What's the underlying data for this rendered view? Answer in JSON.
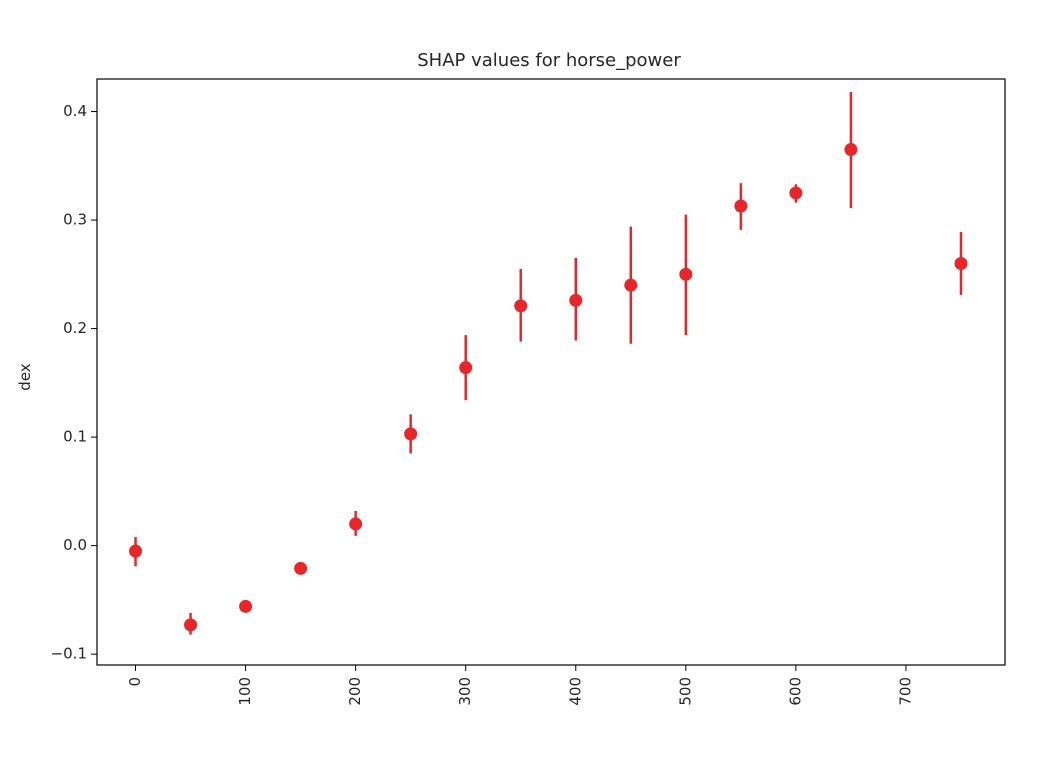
{
  "chart_data": {
    "type": "scatter",
    "title": "SHAP values for horse_power",
    "xlabel": "",
    "ylabel": "dex",
    "xlim": [
      -35,
      790
    ],
    "ylim": [
      -0.11,
      0.43
    ],
    "xticks": [
      0,
      100,
      200,
      300,
      400,
      500,
      600,
      700
    ],
    "yticks": [
      -0.1,
      0.0,
      0.1,
      0.2,
      0.3,
      0.4
    ],
    "ytick_labels": [
      "−0.1",
      "0.0",
      "0.1",
      "0.2",
      "0.3",
      "0.4"
    ],
    "xtick_rotation": "vertical",
    "grid": false,
    "legend": "none",
    "marker_color": "#e8262a",
    "error_bars": true,
    "points": [
      {
        "x": 0,
        "y": -0.005,
        "ylow": -0.019,
        "yhigh": 0.008
      },
      {
        "x": 50,
        "y": -0.073,
        "ylow": -0.082,
        "yhigh": -0.062
      },
      {
        "x": 100,
        "y": -0.056,
        "ylow": -0.061,
        "yhigh": -0.051
      },
      {
        "x": 150,
        "y": -0.021,
        "ylow": -0.025,
        "yhigh": -0.017
      },
      {
        "x": 200,
        "y": 0.02,
        "ylow": 0.009,
        "yhigh": 0.032
      },
      {
        "x": 250,
        "y": 0.103,
        "ylow": 0.085,
        "yhigh": 0.121
      },
      {
        "x": 300,
        "y": 0.164,
        "ylow": 0.134,
        "yhigh": 0.194
      },
      {
        "x": 350,
        "y": 0.221,
        "ylow": 0.188,
        "yhigh": 0.255
      },
      {
        "x": 400,
        "y": 0.226,
        "ylow": 0.189,
        "yhigh": 0.265
      },
      {
        "x": 450,
        "y": 0.24,
        "ylow": 0.186,
        "yhigh": 0.294
      },
      {
        "x": 500,
        "y": 0.25,
        "ylow": 0.194,
        "yhigh": 0.305
      },
      {
        "x": 550,
        "y": 0.313,
        "ylow": 0.291,
        "yhigh": 0.334
      },
      {
        "x": 600,
        "y": 0.325,
        "ylow": 0.316,
        "yhigh": 0.333
      },
      {
        "x": 650,
        "y": 0.365,
        "ylow": 0.311,
        "yhigh": 0.418
      },
      {
        "x": 750,
        "y": 0.26,
        "ylow": 0.231,
        "yhigh": 0.289
      }
    ]
  }
}
